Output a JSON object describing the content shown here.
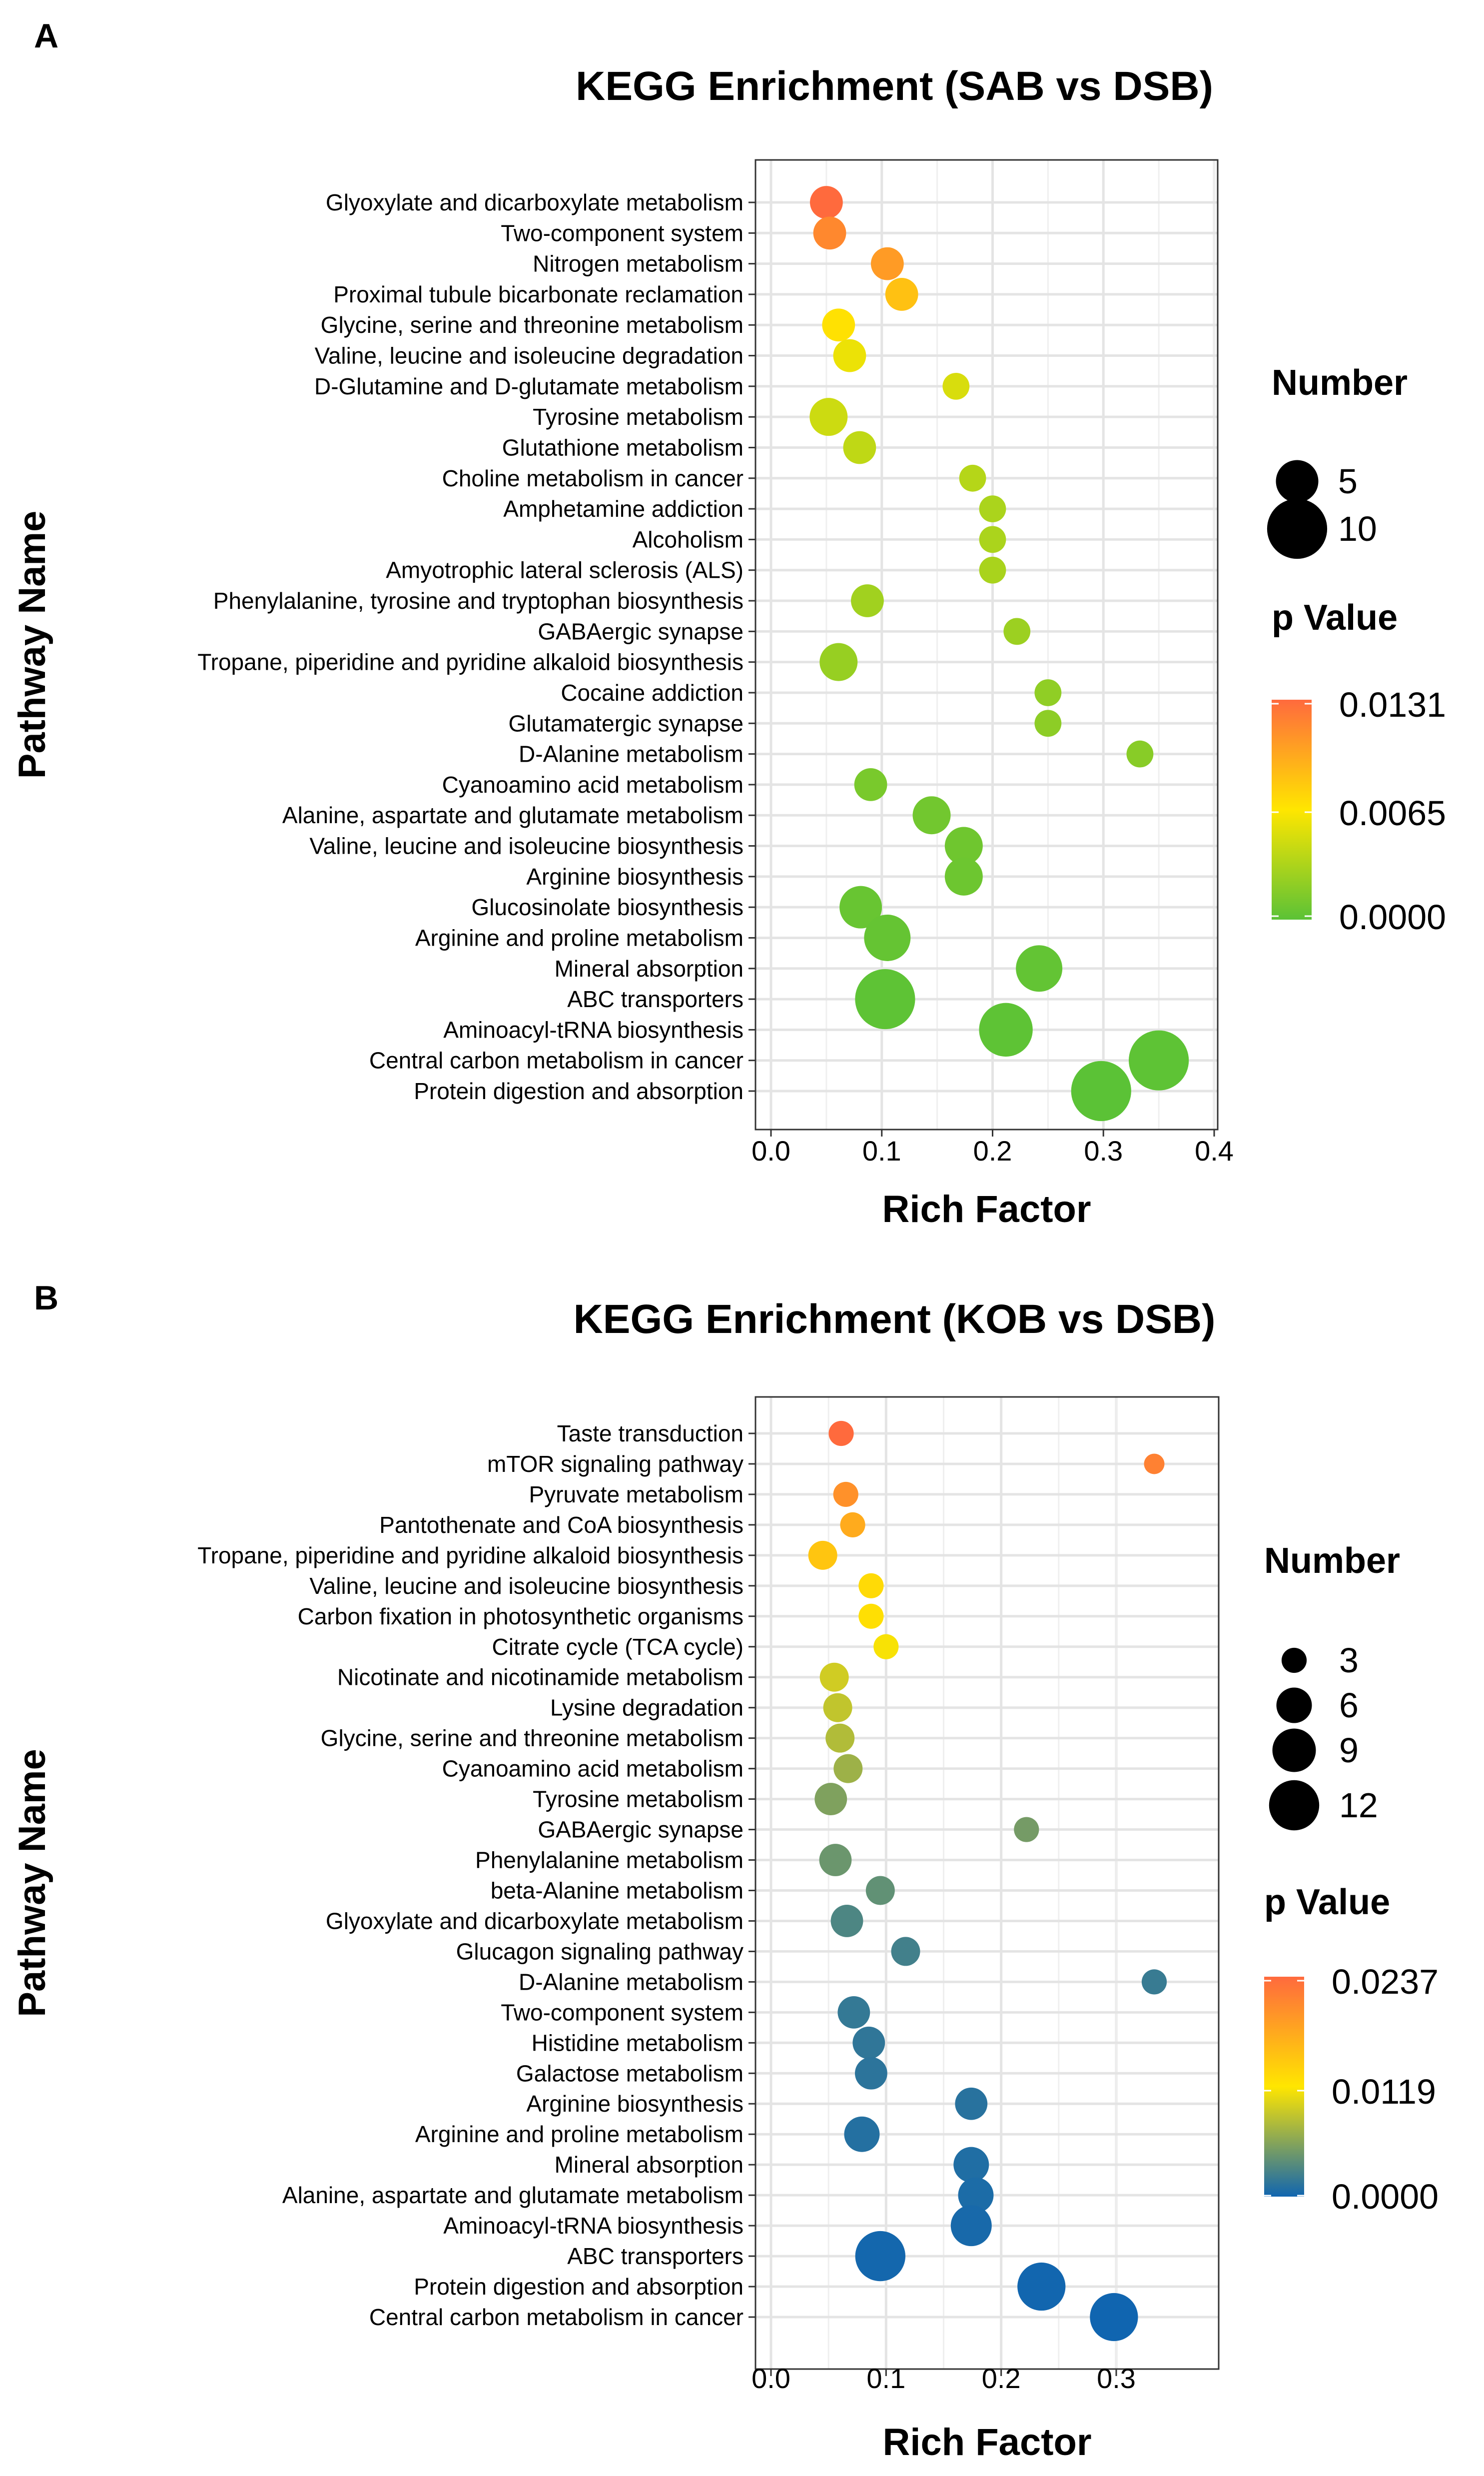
{
  "chart_data": [
    {
      "panel_label": "A",
      "type": "scatter",
      "title": "KEGG Enrichment (SAB vs DSB)",
      "xlabel": "Rich Factor",
      "ylabel": "Pathway Name",
      "xlim": [
        0.0,
        0.4
      ],
      "xticks": [
        "0.0",
        "0.1",
        "0.2",
        "0.3",
        "0.4"
      ],
      "grid": true,
      "size_legend": {
        "title": "Number",
        "entries": [
          {
            "label": "5",
            "value": 5
          },
          {
            "label": "10",
            "value": 10
          }
        ]
      },
      "color_legend": {
        "title": "p Value",
        "tick_labels": [
          "0.0131",
          "0.0065",
          "0.0000"
        ],
        "min": 0.0,
        "max": 0.0131,
        "stops": [
          {
            "offset": 0,
            "color": "#ff6a3d"
          },
          {
            "offset": 0.5,
            "color": "#ffe600"
          },
          {
            "offset": 1,
            "color": "#5bc236"
          }
        ]
      },
      "points": [
        {
          "pathway": "Glyoxylate and dicarboxylate metabolism",
          "rich_factor": 0.05,
          "number": 3,
          "p_value": 0.0131
        },
        {
          "pathway": "Two-component system",
          "rich_factor": 0.053,
          "number": 3,
          "p_value": 0.0115
        },
        {
          "pathway": "Nitrogen metabolism",
          "rich_factor": 0.105,
          "number": 3,
          "p_value": 0.0105
        },
        {
          "pathway": "Proximal tubule bicarbonate reclamation",
          "rich_factor": 0.118,
          "number": 3,
          "p_value": 0.0085
        },
        {
          "pathway": "Glycine, serine and threonine metabolism",
          "rich_factor": 0.061,
          "number": 3,
          "p_value": 0.0068
        },
        {
          "pathway": "Valine, leucine and isoleucine degradation",
          "rich_factor": 0.071,
          "number": 3,
          "p_value": 0.0058
        },
        {
          "pathway": "D-Glutamine and D-glutamate metabolism",
          "rich_factor": 0.167,
          "number": 2,
          "p_value": 0.005
        },
        {
          "pathway": "Tyrosine metabolism",
          "rich_factor": 0.052,
          "number": 4,
          "p_value": 0.0045
        },
        {
          "pathway": "Glutathione metabolism",
          "rich_factor": 0.08,
          "number": 3,
          "p_value": 0.004
        },
        {
          "pathway": "Choline metabolism in cancer",
          "rich_factor": 0.182,
          "number": 2,
          "p_value": 0.0036
        },
        {
          "pathway": "Amphetamine addiction",
          "rich_factor": 0.2,
          "number": 2,
          "p_value": 0.0032
        },
        {
          "pathway": "Alcoholism",
          "rich_factor": 0.2,
          "number": 2,
          "p_value": 0.0032
        },
        {
          "pathway": "Amyotrophic lateral sclerosis (ALS)",
          "rich_factor": 0.2,
          "number": 2,
          "p_value": 0.0031
        },
        {
          "pathway": "Phenylalanine, tyrosine and tryptophan biosynthesis",
          "rich_factor": 0.087,
          "number": 3,
          "p_value": 0.0028
        },
        {
          "pathway": "GABAergic synapse",
          "rich_factor": 0.222,
          "number": 2,
          "p_value": 0.0026
        },
        {
          "pathway": "Tropane, piperidine and pyridine alkaloid biosynthesis",
          "rich_factor": 0.061,
          "number": 4,
          "p_value": 0.0024
        },
        {
          "pathway": "Cocaine addiction",
          "rich_factor": 0.25,
          "number": 2,
          "p_value": 0.0021
        },
        {
          "pathway": "Glutamatergic synapse",
          "rich_factor": 0.25,
          "number": 2,
          "p_value": 0.002
        },
        {
          "pathway": "D-Alanine metabolism",
          "rich_factor": 0.333,
          "number": 2,
          "p_value": 0.0018
        },
        {
          "pathway": "Cyanoamino acid metabolism",
          "rich_factor": 0.09,
          "number": 3,
          "p_value": 0.0012
        },
        {
          "pathway": "Alanine, aspartate and glutamate metabolism",
          "rich_factor": 0.145,
          "number": 4,
          "p_value": 0.0009
        },
        {
          "pathway": "Valine, leucine and isoleucine biosynthesis",
          "rich_factor": 0.174,
          "number": 4,
          "p_value": 0.0008
        },
        {
          "pathway": "Arginine biosynthesis",
          "rich_factor": 0.174,
          "number": 4,
          "p_value": 0.0007
        },
        {
          "pathway": "Glucosinolate biosynthesis",
          "rich_factor": 0.081,
          "number": 5,
          "p_value": 0.0005
        },
        {
          "pathway": "Arginine and proline metabolism",
          "rich_factor": 0.105,
          "number": 6,
          "p_value": 0.0004
        },
        {
          "pathway": "Mineral absorption",
          "rich_factor": 0.242,
          "number": 6,
          "p_value": 0.0003
        },
        {
          "pathway": "ABC transporters",
          "rich_factor": 0.103,
          "number": 10,
          "p_value": 0.0001
        },
        {
          "pathway": "Aminoacyl-tRNA biosynthesis",
          "rich_factor": 0.212,
          "number": 8,
          "p_value": 0.0001
        },
        {
          "pathway": "Central carbon metabolism in cancer",
          "rich_factor": 0.35,
          "number": 10,
          "p_value": 0.0001
        },
        {
          "pathway": "Protein digestion and absorption",
          "rich_factor": 0.298,
          "number": 10,
          "p_value": 0.0
        }
      ]
    },
    {
      "panel_label": "B",
      "type": "scatter",
      "title": "KEGG Enrichment (KOB vs DSB)",
      "xlabel": "Rich Factor",
      "ylabel": "Pathway Name",
      "xlim": [
        0.0,
        0.38
      ],
      "xticks": [
        "0.0",
        "0.1",
        "0.2",
        "0.3"
      ],
      "grid": true,
      "size_legend": {
        "title": "Number",
        "entries": [
          {
            "label": "3",
            "value": 3
          },
          {
            "label": "6",
            "value": 6
          },
          {
            "label": "9",
            "value": 9
          },
          {
            "label": "12",
            "value": 12
          }
        ]
      },
      "color_legend": {
        "title": "p Value",
        "tick_labels": [
          "0.0237",
          "0.0119",
          "0.0000"
        ],
        "min": 0.0,
        "max": 0.0237,
        "stops": [
          {
            "offset": 0,
            "color": "#ff6a3d"
          },
          {
            "offset": 0.5,
            "color": "#ffe600"
          },
          {
            "offset": 1,
            "color": "#1065b0"
          }
        ]
      },
      "points": [
        {
          "pathway": "Taste transduction",
          "rich_factor": 0.061,
          "number": 3,
          "p_value": 0.0237
        },
        {
          "pathway": "mTOR signaling pathway",
          "rich_factor": 0.333,
          "number": 2,
          "p_value": 0.0215
        },
        {
          "pathway": "Pyruvate metabolism",
          "rich_factor": 0.065,
          "number": 3,
          "p_value": 0.02
        },
        {
          "pathway": "Pantothenate and CoA biosynthesis",
          "rich_factor": 0.071,
          "number": 3,
          "p_value": 0.0175
        },
        {
          "pathway": "Tropane, piperidine and pyridine alkaloid biosynthesis",
          "rich_factor": 0.045,
          "number": 4,
          "p_value": 0.015
        },
        {
          "pathway": "Valine, leucine and isoleucine biosynthesis",
          "rich_factor": 0.087,
          "number": 3,
          "p_value": 0.013
        },
        {
          "pathway": "Carbon fixation in photosynthetic organisms",
          "rich_factor": 0.087,
          "number": 3,
          "p_value": 0.0125
        },
        {
          "pathway": "Citrate cycle (TCA cycle)",
          "rich_factor": 0.1,
          "number": 3,
          "p_value": 0.0115
        },
        {
          "pathway": "Nicotinate and nicotinamide metabolism",
          "rich_factor": 0.055,
          "number": 4,
          "p_value": 0.0095
        },
        {
          "pathway": "Lysine degradation",
          "rich_factor": 0.058,
          "number": 4,
          "p_value": 0.0088
        },
        {
          "pathway": "Glycine, serine and threonine metabolism",
          "rich_factor": 0.06,
          "number": 4,
          "p_value": 0.008
        },
        {
          "pathway": "Cyanoamino acid metabolism",
          "rich_factor": 0.067,
          "number": 4,
          "p_value": 0.007
        },
        {
          "pathway": "Tyrosine metabolism",
          "rich_factor": 0.052,
          "number": 5,
          "p_value": 0.0055
        },
        {
          "pathway": "GABAergic synapse",
          "rich_factor": 0.222,
          "number": 3,
          "p_value": 0.005
        },
        {
          "pathway": "Phenylalanine metabolism",
          "rich_factor": 0.056,
          "number": 5,
          "p_value": 0.0045
        },
        {
          "pathway": "beta-Alanine metabolism",
          "rich_factor": 0.095,
          "number": 4,
          "p_value": 0.004
        },
        {
          "pathway": "Glyoxylate and dicarboxylate metabolism",
          "rich_factor": 0.066,
          "number": 5,
          "p_value": 0.003
        },
        {
          "pathway": "Glucagon signaling pathway",
          "rich_factor": 0.117,
          "number": 4,
          "p_value": 0.0025
        },
        {
          "pathway": "D-Alanine metabolism",
          "rich_factor": 0.333,
          "number": 3,
          "p_value": 0.002
        },
        {
          "pathway": "Two-component system",
          "rich_factor": 0.072,
          "number": 5,
          "p_value": 0.0018
        },
        {
          "pathway": "Histidine metabolism",
          "rich_factor": 0.085,
          "number": 5,
          "p_value": 0.0016
        },
        {
          "pathway": "Galactose metabolism",
          "rich_factor": 0.087,
          "number": 5,
          "p_value": 0.0014
        },
        {
          "pathway": "Arginine biosynthesis",
          "rich_factor": 0.174,
          "number": 5,
          "p_value": 0.0012
        },
        {
          "pathway": "Arginine and proline metabolism",
          "rich_factor": 0.079,
          "number": 6,
          "p_value": 0.001
        },
        {
          "pathway": "Mineral absorption",
          "rich_factor": 0.174,
          "number": 6,
          "p_value": 0.0008
        },
        {
          "pathway": "Alanine, aspartate and glutamate metabolism",
          "rich_factor": 0.178,
          "number": 6,
          "p_value": 0.0006
        },
        {
          "pathway": "Aminoacyl-tRNA biosynthesis",
          "rich_factor": 0.174,
          "number": 8,
          "p_value": 0.0004
        },
        {
          "pathway": "ABC transporters",
          "rich_factor": 0.095,
          "number": 12,
          "p_value": 0.0002
        },
        {
          "pathway": "Protein digestion and absorption",
          "rich_factor": 0.235,
          "number": 11,
          "p_value": 0.0001
        },
        {
          "pathway": "Central carbon metabolism in cancer",
          "rich_factor": 0.298,
          "number": 11,
          "p_value": 0.0
        }
      ]
    }
  ]
}
